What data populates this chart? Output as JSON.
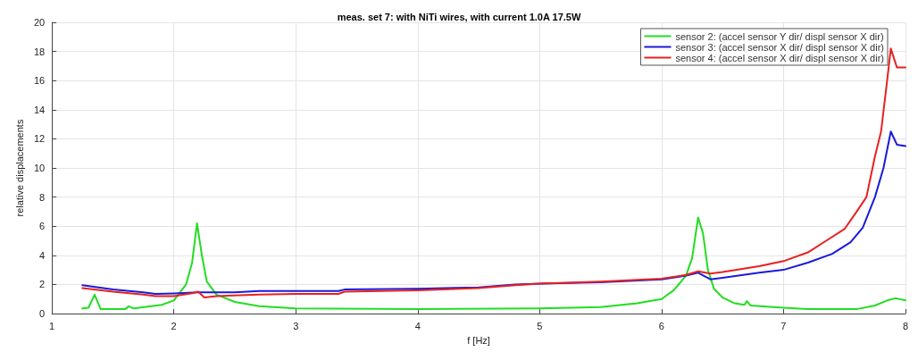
{
  "chart_data": {
    "type": "line",
    "title": "meas. set 7: with NiTi wires, with current 1.0A 17.5W",
    "xlabel": "f [Hz]",
    "ylabel": "relative displacements",
    "xlim": [
      1,
      8
    ],
    "xticks": [
      1,
      2,
      3,
      4,
      5,
      6,
      7,
      8
    ],
    "ylim": [
      0,
      20
    ],
    "yticks": [
      0,
      2,
      4,
      6,
      8,
      10,
      12,
      14,
      16,
      18,
      20
    ],
    "grid": true,
    "legend": "top right",
    "marker": "none",
    "line_style": "solid",
    "series": [
      {
        "name": "sensor 2: (accel sensor Y dir/ displ sensor X dir)",
        "color": "#22dd22",
        "x": [
          1.25,
          1.3,
          1.35,
          1.4,
          1.6,
          1.63,
          1.67,
          1.9,
          2.0,
          2.1,
          2.15,
          2.19,
          2.23,
          2.27,
          2.35,
          2.5,
          2.7,
          3,
          4,
          5,
          5.5,
          5.8,
          6,
          6.1,
          6.2,
          6.25,
          6.3,
          6.34,
          6.38,
          6.43,
          6.5,
          6.6,
          6.68,
          6.7,
          6.73,
          7,
          7.2,
          7.6,
          7.75,
          7.85,
          7.92,
          8
        ],
        "values": [
          0.35,
          0.4,
          1.3,
          0.3,
          0.3,
          0.5,
          0.35,
          0.6,
          0.9,
          2,
          3.5,
          6.2,
          4,
          2.2,
          1.3,
          0.8,
          0.5,
          0.35,
          0.3,
          0.35,
          0.45,
          0.7,
          1.0,
          1.6,
          2.6,
          3.8,
          6.6,
          5.5,
          3,
          1.7,
          1.1,
          0.7,
          0.6,
          0.85,
          0.55,
          0.4,
          0.3,
          0.3,
          0.55,
          0.9,
          1.05,
          0.9
        ]
      },
      {
        "name": "sensor 3: (accel sensor X dir/ displ sensor X dir)",
        "color": "#1a1adb",
        "x": [
          1.25,
          1.5,
          1.75,
          1.85,
          2,
          2.2,
          2.5,
          2.7,
          3,
          3.35,
          3.4,
          4,
          4.5,
          4.8,
          5,
          5.5,
          6,
          6.2,
          6.3,
          6.4,
          6.5,
          6.8,
          7,
          7.2,
          7.4,
          7.55,
          7.65,
          7.75,
          7.82,
          7.88,
          7.93,
          8
        ],
        "values": [
          1.95,
          1.65,
          1.45,
          1.35,
          1.38,
          1.45,
          1.45,
          1.55,
          1.55,
          1.55,
          1.65,
          1.7,
          1.8,
          2.0,
          2.05,
          2.15,
          2.35,
          2.6,
          2.8,
          2.35,
          2.45,
          2.8,
          3.0,
          3.5,
          4.1,
          4.9,
          5.9,
          8.0,
          10,
          12.5,
          11.6,
          11.5
        ]
      },
      {
        "name": "sensor 4: (accel sensor X dir/ displ sensor X dir)",
        "color": "#e82020",
        "x": [
          1.25,
          1.5,
          1.75,
          1.85,
          2,
          2.15,
          2.2,
          2.25,
          2.35,
          2.7,
          3,
          3.35,
          3.4,
          4,
          4.5,
          4.8,
          5,
          5.5,
          6,
          6.2,
          6.3,
          6.4,
          6.5,
          6.8,
          7,
          7.2,
          7.35,
          7.5,
          7.6,
          7.68,
          7.75,
          7.8,
          7.85,
          7.88,
          7.93,
          8
        ],
        "values": [
          1.75,
          1.5,
          1.3,
          1.2,
          1.2,
          1.4,
          1.5,
          1.1,
          1.2,
          1.3,
          1.35,
          1.35,
          1.5,
          1.6,
          1.75,
          1.95,
          2.05,
          2.2,
          2.4,
          2.65,
          2.9,
          2.75,
          2.85,
          3.25,
          3.6,
          4.2,
          5.0,
          5.8,
          7.0,
          8.0,
          10.8,
          12.5,
          16,
          18.2,
          16.9,
          16.9
        ]
      }
    ]
  }
}
